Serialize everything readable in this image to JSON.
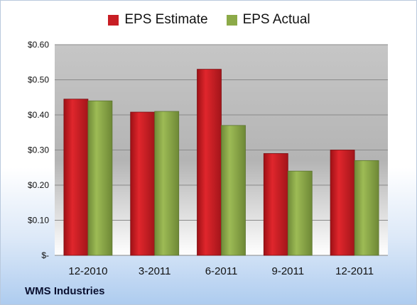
{
  "chart_data": {
    "type": "bar",
    "categories": [
      "12-2010",
      "3-2011",
      "6-2011",
      "9-2011",
      "12-2011"
    ],
    "series": [
      {
        "name": "EPS Estimate",
        "color": "#c81e24",
        "values": [
          0.445,
          0.408,
          0.53,
          0.29,
          0.3
        ]
      },
      {
        "name": "EPS Actual",
        "color": "#8caa48",
        "values": [
          0.44,
          0.41,
          0.37,
          0.24,
          0.27
        ]
      }
    ],
    "yticks": [
      "$-",
      "$0.10",
      "$0.20",
      "$0.30",
      "$0.40",
      "$0.50",
      "$0.60"
    ],
    "ylim": [
      0,
      0.6
    ],
    "grid": true,
    "legend_position": "top-center",
    "title": "",
    "xlabel": "",
    "ylabel": ""
  },
  "company_label": "WMS Industries"
}
